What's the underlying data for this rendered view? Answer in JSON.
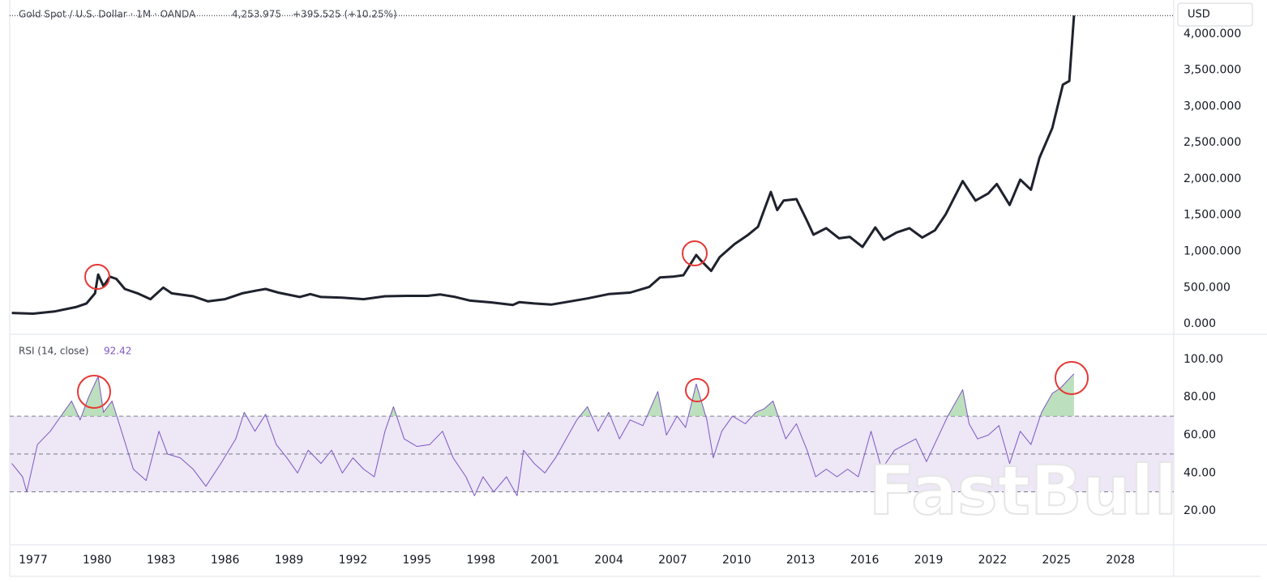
{
  "chart_data": [
    {
      "type": "line",
      "title": "Gold Spot / U.S. Dollar · 1M · OANDA",
      "last": "4,253.975",
      "change": "+395.525 (+10.25%)",
      "currency": "USD",
      "watermark": "FastBull",
      "x": [
        1976.0,
        1977.0,
        1978.0,
        1979.0,
        1979.5,
        1979.9,
        1980.05,
        1980.3,
        1980.6,
        1980.9,
        1981.3,
        1981.9,
        1982.5,
        1983.1,
        1983.5,
        1984.5,
        1985.2,
        1986.0,
        1986.8,
        1987.5,
        1987.9,
        1988.5,
        1989.5,
        1990.0,
        1990.5,
        1991.5,
        1992.5,
        1993.5,
        1994.5,
        1995.5,
        1996.1,
        1996.8,
        1997.5,
        1998.5,
        1999.5,
        1999.8,
        2000.5,
        2001.3,
        2002.0,
        2003.0,
        2004.0,
        2005.0,
        2005.9,
        2006.4,
        2007.0,
        2007.5,
        2008.1,
        2008.3,
        2008.8,
        2009.2,
        2009.9,
        2010.5,
        2011.0,
        2011.6,
        2011.9,
        2012.2,
        2012.8,
        2013.3,
        2013.6,
        2014.2,
        2014.8,
        2015.3,
        2015.9,
        2016.5,
        2016.9,
        2017.5,
        2018.1,
        2018.7,
        2019.3,
        2019.8,
        2020.6,
        2021.2,
        2021.8,
        2022.2,
        2022.8,
        2023.3,
        2023.8,
        2024.2,
        2024.8,
        2025.3,
        2025.6,
        2025.82
      ],
      "series": [
        {
          "color": "#1e222d",
          "values": [
            150,
            140,
            170,
            230,
            280,
            420,
            680,
            520,
            650,
            620,
            480,
            420,
            340,
            500,
            420,
            380,
            310,
            340,
            420,
            460,
            480,
            430,
            370,
            410,
            370,
            360,
            340,
            380,
            385,
            385,
            405,
            370,
            320,
            295,
            260,
            300,
            280,
            265,
            300,
            350,
            410,
            430,
            510,
            640,
            650,
            670,
            950,
            880,
            730,
            920,
            1100,
            1220,
            1340,
            1820,
            1570,
            1700,
            1720,
            1420,
            1230,
            1320,
            1180,
            1200,
            1060,
            1330,
            1160,
            1260,
            1320,
            1190,
            1290,
            1510,
            1970,
            1700,
            1800,
            1930,
            1640,
            1990,
            1850,
            2290,
            2700,
            3300,
            3350,
            4253.975
          ]
        }
      ],
      "xlim": [
        1975.9,
        2030.5
      ],
      "ylim": [
        -134,
        4413
      ],
      "xticks": [
        1977,
        1980,
        1983,
        1986,
        1989,
        1992,
        1995,
        1998,
        2001,
        2004,
        2007,
        2010,
        2013,
        2016,
        2019,
        2022,
        2025,
        2028
      ],
      "yticks": [
        {
          "value": 0,
          "label": "0.000"
        },
        {
          "value": 500,
          "label": "500.000"
        },
        {
          "value": 1000,
          "label": "1,000.000"
        },
        {
          "value": 1500,
          "label": "1,500.000"
        },
        {
          "value": 2000,
          "label": "2,000.000"
        },
        {
          "value": 2500,
          "label": "2,500.000"
        },
        {
          "value": 3000,
          "label": "3,000.000"
        },
        {
          "value": 3500,
          "label": "3,500.000"
        },
        {
          "value": 4000,
          "label": "4,000.000"
        }
      ]
    },
    {
      "type": "line",
      "title": "RSI (14, close)",
      "x": [
        1976.0,
        1976.5,
        1976.7,
        1977.2,
        1977.8,
        1978.3,
        1978.8,
        1979.2,
        1979.6,
        1980.05,
        1980.3,
        1980.7,
        1981.2,
        1981.7,
        1982.3,
        1982.9,
        1983.3,
        1983.9,
        1984.5,
        1985.1,
        1985.8,
        1986.5,
        1986.9,
        1987.4,
        1987.9,
        1988.4,
        1988.9,
        1989.4,
        1989.9,
        1990.5,
        1991.0,
        1991.5,
        1992.0,
        1992.5,
        1993.0,
        1993.5,
        1993.9,
        1994.4,
        1995.0,
        1995.6,
        1996.2,
        1996.7,
        1997.3,
        1997.7,
        1998.1,
        1998.6,
        1999.2,
        1999.7,
        2000.0,
        2000.5,
        2001.0,
        2001.5,
        2002.0,
        2002.5,
        2003.0,
        2003.5,
        2004.0,
        2004.5,
        2005.0,
        2005.6,
        2006.3,
        2006.7,
        2007.2,
        2007.6,
        2008.1,
        2008.6,
        2008.9,
        2009.3,
        2009.8,
        2010.4,
        2010.9,
        2011.3,
        2011.7,
        2012.3,
        2012.8,
        2013.3,
        2013.7,
        2014.2,
        2014.7,
        2015.2,
        2015.7,
        2016.3,
        2016.8,
        2017.4,
        2017.9,
        2018.4,
        2018.9,
        2019.4,
        2019.9,
        2020.6,
        2020.9,
        2021.3,
        2021.8,
        2022.3,
        2022.8,
        2023.3,
        2023.8,
        2024.3,
        2024.8,
        2025.2,
        2025.82
      ],
      "series": [
        {
          "color": "#7e57c2",
          "values": [
            45,
            38,
            30,
            55,
            62,
            70,
            78,
            68,
            80,
            91,
            72,
            78,
            60,
            42,
            36,
            62,
            50,
            48,
            42,
            33,
            45,
            58,
            72,
            62,
            71,
            55,
            48,
            40,
            52,
            45,
            52,
            40,
            48,
            42,
            38,
            62,
            75,
            58,
            54,
            55,
            62,
            48,
            38,
            28,
            38,
            30,
            38,
            28,
            52,
            45,
            40,
            48,
            58,
            68,
            75,
            62,
            72,
            58,
            68,
            65,
            83,
            60,
            70,
            64,
            87,
            68,
            48,
            62,
            70,
            66,
            72,
            74,
            78,
            58,
            66,
            52,
            38,
            42,
            38,
            42,
            38,
            62,
            42,
            52,
            55,
            58,
            46,
            58,
            70,
            84,
            66,
            58,
            60,
            65,
            45,
            62,
            55,
            72,
            82,
            85,
            92.42
          ]
        }
      ],
      "levels": [
        30,
        50,
        70
      ],
      "band_color": "#ede7f6",
      "overbought_color": "#a5d6a7",
      "xlim": [
        1975.9,
        2030.5
      ],
      "ylim": [
        2.5,
        112.8
      ],
      "yticks": [
        {
          "value": 20,
          "label": "20.00"
        },
        {
          "value": 40,
          "label": "40.00"
        },
        {
          "value": 60,
          "label": "60.00"
        },
        {
          "value": 80,
          "label": "80.00"
        },
        {
          "value": 100,
          "label": "100.00"
        }
      ]
    }
  ]
}
